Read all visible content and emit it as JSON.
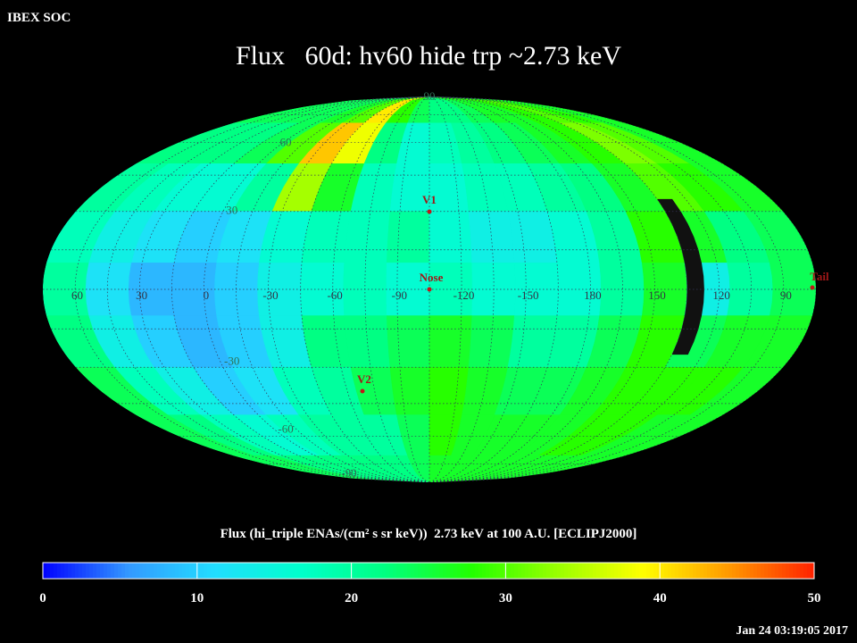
{
  "header": {
    "app": "IBEX SOC",
    "title": "Flux   60d: hv60 hide trp ~2.73 keV",
    "timestamp": "Jan 24 03:19:05 2017"
  },
  "map": {
    "lon_labels": [
      60,
      30,
      0,
      -30,
      -60,
      -90,
      -120,
      -150,
      180,
      150,
      120,
      90
    ],
    "lat_labels": [
      90,
      60,
      30,
      -30,
      -60,
      -90
    ],
    "markers": [
      {
        "label": "V1"
      },
      {
        "label": "Nose"
      },
      {
        "label": "V2"
      },
      {
        "label": "Tail"
      }
    ],
    "flux": [
      [
        24,
        24,
        24,
        24,
        26,
        30,
        40,
        28,
        24,
        22,
        22,
        24,
        26,
        26,
        28,
        30,
        28,
        26
      ],
      [
        22,
        22,
        22,
        24,
        30,
        42,
        38,
        22,
        16,
        18,
        20,
        22,
        24,
        26,
        28,
        32,
        30,
        26
      ],
      [
        20,
        18,
        16,
        16,
        20,
        34,
        26,
        18,
        16,
        16,
        18,
        18,
        20,
        22,
        26,
        30,
        28,
        26
      ],
      [
        18,
        14,
        12,
        10,
        12,
        16,
        18,
        18,
        20,
        16,
        14,
        14,
        16,
        20,
        28,
        26,
        22,
        24
      ],
      [
        20,
        12,
        8,
        8,
        10,
        14,
        16,
        18,
        16,
        18,
        16,
        16,
        16,
        20,
        26,
        14,
        20,
        24
      ],
      [
        22,
        14,
        10,
        8,
        10,
        14,
        22,
        22,
        24,
        26,
        24,
        20,
        20,
        24,
        28,
        24,
        26,
        26
      ],
      [
        24,
        18,
        14,
        10,
        12,
        18,
        20,
        24,
        26,
        28,
        26,
        24,
        24,
        26,
        28,
        28,
        28,
        26
      ],
      [
        24,
        22,
        18,
        16,
        18,
        20,
        20,
        20,
        24,
        28,
        26,
        26,
        26,
        26,
        28,
        28,
        26,
        26
      ],
      [
        24,
        24,
        22,
        22,
        22,
        22,
        22,
        22,
        24,
        26,
        26,
        26,
        26,
        26,
        26,
        26,
        26,
        26
      ]
    ]
  },
  "colorbar": {
    "label": "Flux (hi_triple ENAs/(cm² s sr keV))  2.73 keV at 100 A.U. [ECLIPJ2000]",
    "range": [
      0,
      50
    ],
    "ticks": [
      0,
      10,
      20,
      30,
      40,
      50
    ],
    "colors": [
      "#0000ff",
      "#3399ff",
      "#22ddff",
      "#00ffcc",
      "#00ff80",
      "#22ff00",
      "#99ff00",
      "#ffff00",
      "#ff9900",
      "#ff2200"
    ]
  }
}
